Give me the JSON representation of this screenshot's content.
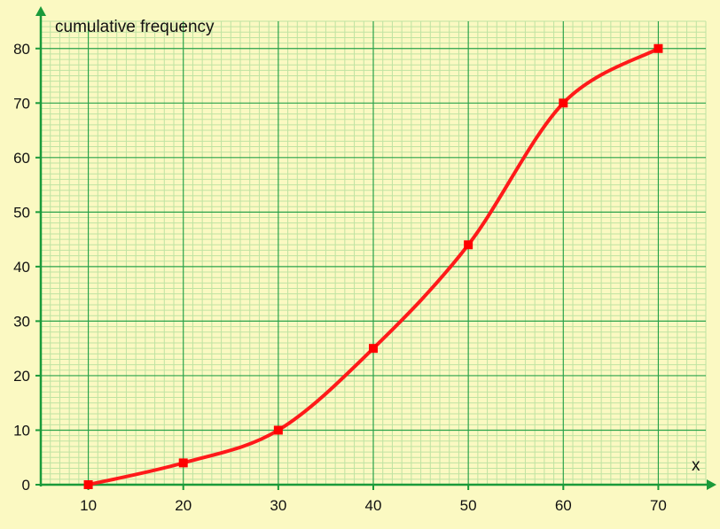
{
  "colors": {
    "background": "#fbf9c2",
    "minor_grid": "#bfe3a2",
    "major_grid": "#2aa24a",
    "axis": "#1a9a3a",
    "curve": "#ff1a1a",
    "marker": "#ff0000"
  },
  "chart_data": {
    "type": "line",
    "ylabel": "cumulative frequency",
    "xlabel": "x",
    "xlim": [
      5,
      75
    ],
    "ylim": [
      0,
      85
    ],
    "x_ticks": [
      10,
      20,
      30,
      40,
      50,
      60,
      70
    ],
    "y_ticks": [
      0,
      10,
      20,
      30,
      40,
      50,
      60,
      70,
      80
    ],
    "x_tick_labels": [
      "10",
      "20",
      "30",
      "40",
      "50",
      "60",
      "70"
    ],
    "y_tick_labels": [
      "0",
      "10",
      "20",
      "30",
      "40",
      "50",
      "60",
      "70",
      "80"
    ],
    "minor_grid_step_x": 1,
    "minor_grid_step_y": 1,
    "grid": true,
    "smooth": true,
    "series": [
      {
        "x": [
          10,
          20,
          30,
          40,
          50,
          60,
          70
        ],
        "values": [
          0,
          4,
          10,
          25,
          44,
          70,
          80
        ]
      }
    ]
  }
}
